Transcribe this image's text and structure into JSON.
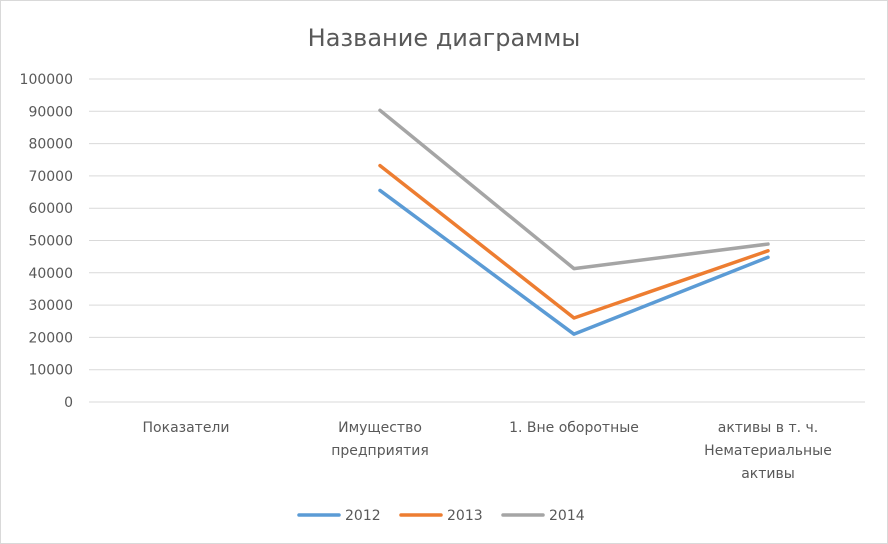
{
  "chart_data": {
    "type": "line",
    "title": "Название диаграммы",
    "xlabel": "",
    "ylabel": "",
    "ylim": [
      0,
      100000
    ],
    "yticks": [
      "0",
      "10000",
      "20000",
      "30000",
      "40000",
      "50000",
      "60000",
      "70000",
      "80000",
      "90000",
      "100000"
    ],
    "categories": [
      [
        "Показатели"
      ],
      [
        "Имущество",
        "предприятия"
      ],
      [
        "1. Вне оборотные"
      ],
      [
        "активы в т. ч.",
        "Нематериальные",
        "активы"
      ]
    ],
    "grid": true,
    "legend_position": "bottom",
    "series": [
      {
        "name": "2012",
        "color": "#5b9bd5",
        "values": [
          null,
          65500,
          21000,
          44800
        ]
      },
      {
        "name": "2013",
        "color": "#ed7d31",
        "values": [
          null,
          73200,
          26000,
          46800
        ]
      },
      {
        "name": "2014",
        "color": "#a5a5a5",
        "values": [
          null,
          90300,
          41300,
          48900
        ]
      }
    ]
  }
}
